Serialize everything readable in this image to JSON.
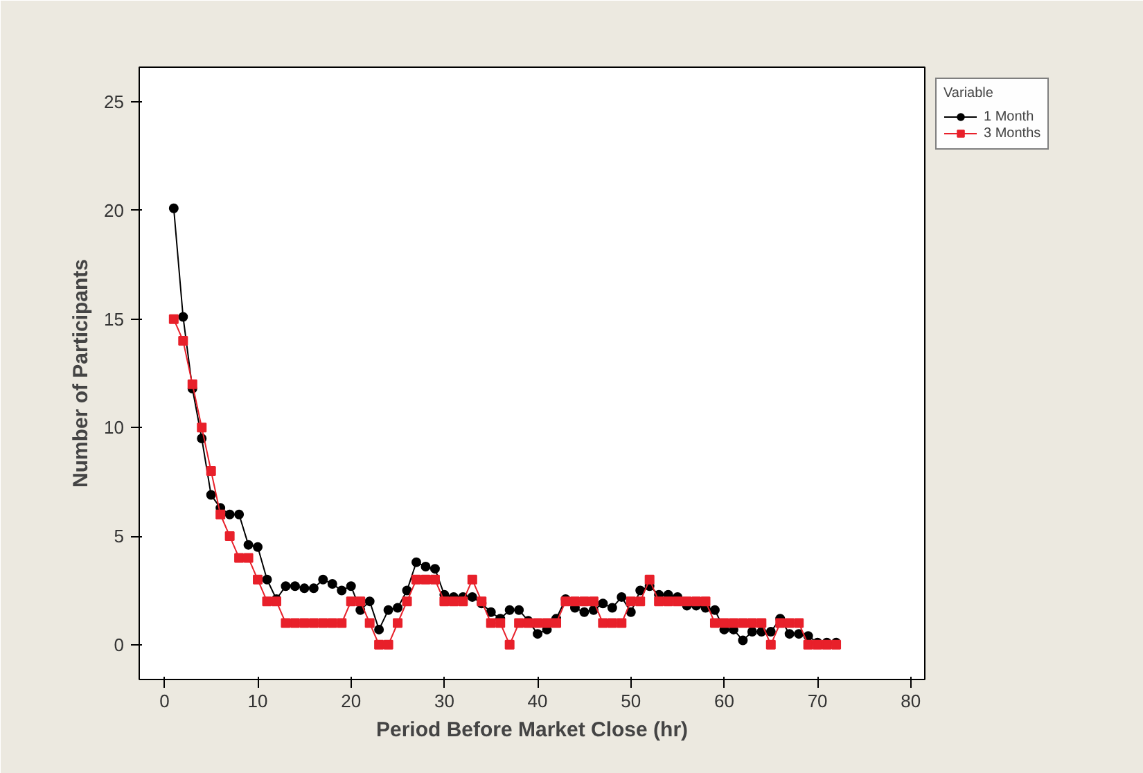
{
  "chart_data": {
    "type": "line",
    "xlabel": "Period Before Market Close (hr)",
    "ylabel": "Number of Participants",
    "legend_title": "Variable",
    "legend": "top right",
    "grid": false,
    "xlim": [
      -2.7,
      81.5
    ],
    "ylim": [
      -1.6,
      26.6
    ],
    "xticks": [
      0,
      10,
      20,
      30,
      40,
      50,
      60,
      70,
      80
    ],
    "yticks": [
      0,
      5,
      10,
      15,
      20,
      25
    ],
    "x": [
      1,
      2,
      3,
      4,
      5,
      6,
      7,
      8,
      9,
      10,
      11,
      12,
      13,
      14,
      15,
      16,
      17,
      18,
      19,
      20,
      21,
      22,
      23,
      24,
      25,
      26,
      27,
      28,
      29,
      30,
      31,
      32,
      33,
      34,
      35,
      36,
      37,
      38,
      39,
      40,
      41,
      42,
      43,
      44,
      45,
      46,
      47,
      48,
      49,
      50,
      51,
      52,
      53,
      54,
      55,
      56,
      57,
      58,
      59,
      60,
      61,
      62,
      63,
      64,
      65,
      66,
      67,
      68,
      69,
      70,
      71,
      72
    ],
    "series": [
      {
        "name": "1 Month",
        "color": "#000000",
        "marker": "circle",
        "values": [
          20.1,
          15.1,
          11.8,
          9.5,
          6.9,
          6.3,
          6,
          6,
          4.6,
          4.5,
          3,
          2.1,
          2.7,
          2.7,
          2.6,
          2.6,
          3,
          2.8,
          2.5,
          2.7,
          1.6,
          2,
          0.7,
          1.6,
          1.7,
          2.5,
          3.8,
          3.6,
          3.5,
          2.3,
          2.2,
          2.2,
          2.2,
          1.9,
          1.5,
          1.2,
          1.6,
          1.6,
          1.1,
          0.5,
          0.7,
          1.2,
          2.1,
          1.7,
          1.5,
          1.6,
          1.9,
          1.7,
          2.2,
          1.5,
          2.5,
          2.7,
          2.3,
          2.3,
          2.2,
          1.8,
          1.8,
          1.7,
          1.6,
          0.7,
          0.7,
          0.2,
          0.6,
          0.6,
          0.6,
          1.2,
          0.5,
          0.5,
          0.4,
          0.1,
          0.1,
          0.1
        ]
      },
      {
        "name": "3 Months",
        "color": "#e8202a",
        "marker": "square",
        "values": [
          15,
          14,
          12,
          10,
          8,
          6,
          5,
          4,
          4,
          3,
          2,
          2,
          1,
          1,
          1,
          1,
          1,
          1,
          1,
          2,
          2,
          1,
          0,
          0,
          1,
          2,
          3,
          3,
          3,
          2,
          2,
          2,
          3,
          2,
          1,
          1,
          0,
          1,
          1,
          1,
          1,
          1,
          2,
          2,
          2,
          2,
          1,
          1,
          1,
          2,
          2,
          3,
          2,
          2,
          2,
          2,
          2,
          2,
          1,
          1,
          1,
          1,
          1,
          1,
          0,
          1,
          1,
          1,
          0,
          0,
          0,
          0
        ]
      }
    ]
  }
}
